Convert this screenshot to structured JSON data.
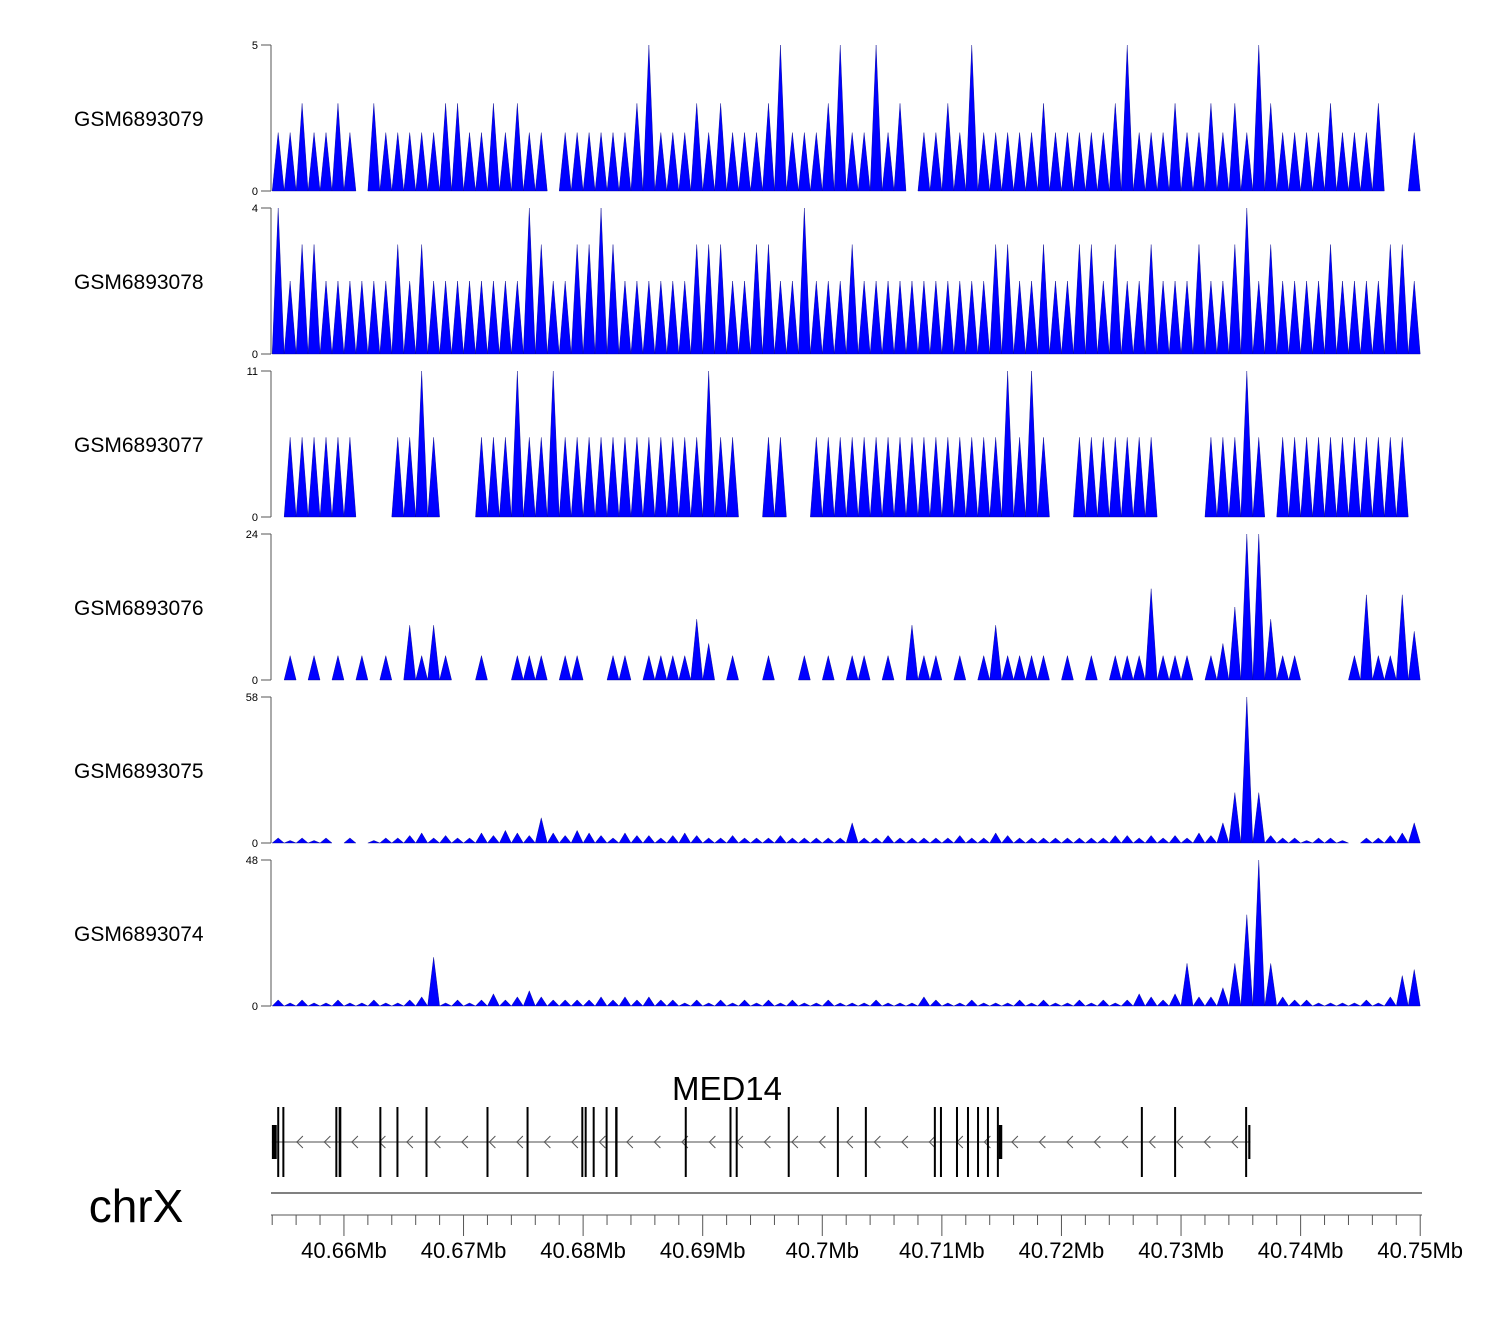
{
  "chart_data": {
    "type": "area",
    "title": "",
    "xlabel": "",
    "chromosome": "chrX",
    "xlim_bp": [
      40653900,
      40750150
    ],
    "bin_start_bp": 40654000,
    "bin_size_bp": 1000,
    "fill_color": "#0000ff",
    "x_ticks": [
      "40.66Mb",
      "40.67Mb",
      "40.68Mb",
      "40.69Mb",
      "40.7Mb",
      "40.71Mb",
      "40.72Mb",
      "40.73Mb",
      "40.74Mb",
      "40.75Mb"
    ],
    "x_tick_values_bp": [
      40660000,
      40670000,
      40680000,
      40690000,
      40700000,
      40710000,
      40720000,
      40730000,
      40740000,
      40750000
    ],
    "tracks": [
      {
        "name": "GSM6893079",
        "ylim": [
          0,
          5
        ],
        "ytick_labels": [
          "0",
          "5"
        ],
        "values": [
          2,
          2,
          3,
          2,
          2,
          3,
          2,
          0,
          3,
          2,
          2,
          2,
          2,
          2,
          3,
          3,
          2,
          2,
          3,
          2,
          3,
          2,
          2,
          0,
          2,
          2,
          2,
          2,
          2,
          2,
          3,
          5,
          2,
          2,
          2,
          3,
          2,
          3,
          2,
          2,
          2,
          3,
          5,
          2,
          2,
          2,
          3,
          5,
          2,
          2,
          5,
          2,
          3,
          0,
          2,
          2,
          3,
          2,
          5,
          2,
          2,
          2,
          2,
          2,
          3,
          2,
          2,
          2,
          2,
          2,
          3,
          5,
          2,
          2,
          2,
          3,
          2,
          2,
          3,
          2,
          3,
          2,
          5,
          3,
          2,
          2,
          2,
          2,
          3,
          2,
          2,
          2,
          3,
          0,
          0,
          2
        ]
      },
      {
        "name": "GSM6893078",
        "ylim": [
          0,
          4
        ],
        "ytick_labels": [
          "0",
          "4"
        ],
        "values": [
          4,
          2,
          3,
          3,
          2,
          2,
          2,
          2,
          2,
          2,
          3,
          2,
          3,
          2,
          2,
          2,
          2,
          2,
          2,
          2,
          2,
          4,
          3,
          2,
          2,
          3,
          3,
          4,
          3,
          2,
          2,
          2,
          2,
          2,
          2,
          3,
          3,
          3,
          2,
          2,
          3,
          3,
          2,
          2,
          4,
          2,
          2,
          2,
          3,
          2,
          2,
          2,
          2,
          2,
          2,
          2,
          2,
          2,
          2,
          2,
          3,
          3,
          2,
          2,
          3,
          2,
          2,
          3,
          3,
          2,
          3,
          2,
          2,
          3,
          2,
          2,
          2,
          3,
          2,
          2,
          3,
          4,
          2,
          3,
          2,
          2,
          2,
          2,
          3,
          2,
          2,
          2,
          2,
          3,
          3,
          2
        ]
      },
      {
        "name": "GSM6893077",
        "ylim": [
          0,
          11
        ],
        "ytick_labels": [
          "0",
          "11"
        ],
        "values": [
          0,
          6,
          6,
          6,
          6,
          6,
          6,
          0,
          0,
          0,
          6,
          6,
          11,
          6,
          0,
          0,
          0,
          6,
          6,
          6,
          11,
          6,
          6,
          11,
          6,
          6,
          6,
          6,
          6,
          6,
          6,
          6,
          6,
          6,
          6,
          6,
          11,
          6,
          6,
          0,
          0,
          6,
          6,
          0,
          0,
          6,
          6,
          6,
          6,
          6,
          6,
          6,
          6,
          6,
          6,
          6,
          6,
          6,
          6,
          6,
          6,
          11,
          6,
          11,
          6,
          0,
          0,
          6,
          6,
          6,
          6,
          6,
          6,
          6,
          0,
          0,
          0,
          0,
          6,
          6,
          6,
          11,
          6,
          0,
          6,
          6,
          6,
          6,
          6,
          6,
          6,
          6,
          6,
          6,
          6,
          0
        ]
      },
      {
        "name": "GSM6893076",
        "ylim": [
          0,
          24
        ],
        "ytick_labels": [
          "0",
          "24"
        ],
        "values": [
          0,
          4,
          0,
          4,
          0,
          4,
          0,
          4,
          0,
          4,
          0,
          9,
          4,
          9,
          4,
          0,
          0,
          4,
          0,
          0,
          4,
          4,
          4,
          0,
          4,
          4,
          0,
          0,
          4,
          4,
          0,
          4,
          4,
          4,
          4,
          10,
          6,
          0,
          4,
          0,
          0,
          4,
          0,
          0,
          4,
          0,
          4,
          0,
          4,
          4,
          0,
          4,
          0,
          9,
          4,
          4,
          0,
          4,
          0,
          4,
          9,
          4,
          4,
          4,
          4,
          0,
          4,
          0,
          4,
          0,
          4,
          4,
          4,
          15,
          4,
          4,
          4,
          0,
          4,
          6,
          12,
          24,
          24,
          10,
          4,
          4,
          0,
          0,
          0,
          0,
          4,
          14,
          4,
          4,
          14,
          8
        ]
      },
      {
        "name": "GSM6893075",
        "ylim": [
          0,
          58
        ],
        "ytick_labels": [
          "0",
          "58"
        ],
        "values": [
          2,
          1,
          2,
          1,
          2,
          0,
          2,
          0,
          1,
          2,
          2,
          3,
          4,
          2,
          3,
          2,
          2,
          4,
          3,
          5,
          4,
          3,
          10,
          4,
          3,
          5,
          4,
          3,
          2,
          4,
          3,
          3,
          2,
          3,
          4,
          3,
          2,
          2,
          3,
          2,
          2,
          2,
          3,
          2,
          2,
          2,
          2,
          2,
          8,
          2,
          2,
          3,
          2,
          2,
          2,
          2,
          2,
          3,
          2,
          2,
          4,
          3,
          2,
          2,
          2,
          2,
          2,
          2,
          2,
          2,
          3,
          3,
          2,
          3,
          2,
          3,
          2,
          4,
          3,
          8,
          20,
          58,
          20,
          3,
          2,
          2,
          1,
          2,
          2,
          1,
          0,
          2,
          2,
          3,
          4,
          8
        ]
      },
      {
        "name": "GSM6893074",
        "ylim": [
          0,
          48
        ],
        "ytick_labels": [
          "0",
          "48"
        ],
        "values": [
          2,
          1,
          2,
          1,
          1,
          2,
          1,
          1,
          2,
          1,
          1,
          2,
          3,
          16,
          1,
          2,
          1,
          2,
          4,
          2,
          3,
          5,
          3,
          2,
          2,
          2,
          2,
          3,
          2,
          3,
          2,
          3,
          2,
          2,
          1,
          2,
          1,
          2,
          1,
          2,
          1,
          2,
          1,
          2,
          1,
          1,
          2,
          1,
          1,
          1,
          2,
          1,
          1,
          1,
          3,
          2,
          1,
          1,
          2,
          1,
          1,
          1,
          2,
          1,
          2,
          1,
          1,
          2,
          1,
          2,
          1,
          2,
          4,
          3,
          2,
          4,
          14,
          3,
          3,
          6,
          14,
          30,
          48,
          14,
          3,
          2,
          2,
          1,
          1,
          1,
          1,
          2,
          1,
          3,
          10,
          12
        ]
      }
    ],
    "gene": {
      "name": "MED14",
      "strand": "-",
      "start_bp": 40653974,
      "end_bp": 40735800,
      "exons": [
        {
          "start": 40653974,
          "end": 40654380,
          "kind": "utr"
        },
        {
          "start": 40654420,
          "end": 40654540,
          "kind": "cds"
        },
        {
          "start": 40654850,
          "end": 40654960,
          "kind": "cds"
        },
        {
          "start": 40659280,
          "end": 40659400,
          "kind": "cds"
        },
        {
          "start": 40659560,
          "end": 40659780,
          "kind": "cds"
        },
        {
          "start": 40662960,
          "end": 40663090,
          "kind": "cds"
        },
        {
          "start": 40664390,
          "end": 40664480,
          "kind": "cds"
        },
        {
          "start": 40666820,
          "end": 40666900,
          "kind": "cds"
        },
        {
          "start": 40671920,
          "end": 40672000,
          "kind": "cds"
        },
        {
          "start": 40675270,
          "end": 40675360,
          "kind": "cds"
        },
        {
          "start": 40679850,
          "end": 40680000,
          "kind": "cds"
        },
        {
          "start": 40680130,
          "end": 40680230,
          "kind": "cds"
        },
        {
          "start": 40680800,
          "end": 40680880,
          "kind": "cds"
        },
        {
          "start": 40681880,
          "end": 40681970,
          "kind": "cds"
        },
        {
          "start": 40682680,
          "end": 40682880,
          "kind": "cds"
        },
        {
          "start": 40688500,
          "end": 40688580,
          "kind": "cds"
        },
        {
          "start": 40692240,
          "end": 40692360,
          "kind": "cds"
        },
        {
          "start": 40692760,
          "end": 40692870,
          "kind": "cds"
        },
        {
          "start": 40697110,
          "end": 40697220,
          "kind": "cds"
        },
        {
          "start": 40701220,
          "end": 40701300,
          "kind": "cds"
        },
        {
          "start": 40703560,
          "end": 40703640,
          "kind": "cds"
        },
        {
          "start": 40709330,
          "end": 40709430,
          "kind": "cds"
        },
        {
          "start": 40709840,
          "end": 40709940,
          "kind": "cds"
        },
        {
          "start": 40711180,
          "end": 40711270,
          "kind": "cds"
        },
        {
          "start": 40712100,
          "end": 40712190,
          "kind": "cds"
        },
        {
          "start": 40712940,
          "end": 40713030,
          "kind": "cds"
        },
        {
          "start": 40713770,
          "end": 40713860,
          "kind": "cds"
        },
        {
          "start": 40714600,
          "end": 40714700,
          "kind": "cds"
        },
        {
          "start": 40714750,
          "end": 40715050,
          "kind": "utr"
        },
        {
          "start": 40726640,
          "end": 40726800,
          "kind": "cds"
        },
        {
          "start": 40729420,
          "end": 40729540,
          "kind": "cds"
        },
        {
          "start": 40735360,
          "end": 40735480,
          "kind": "cds"
        },
        {
          "start": 40735620,
          "end": 40735800,
          "kind": "utr"
        }
      ]
    }
  }
}
